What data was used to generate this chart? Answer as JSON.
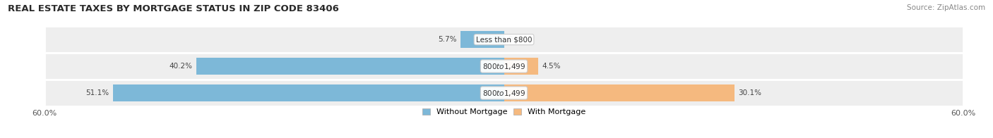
{
  "title": "REAL ESTATE TAXES BY MORTGAGE STATUS IN ZIP CODE 83406",
  "source": "Source: ZipAtlas.com",
  "rows": [
    {
      "label": "Less than $800",
      "without_mortgage": 5.7,
      "with_mortgage": 0.0
    },
    {
      "label": "$800 to $1,499",
      "without_mortgage": 40.2,
      "with_mortgage": 4.5
    },
    {
      "label": "$800 to $1,499",
      "without_mortgage": 51.1,
      "with_mortgage": 30.1
    }
  ],
  "xlim": 60.0,
  "color_without": "#7db8d8",
  "color_with": "#f5b97f",
  "bg_row_even": "#efefef",
  "bg_row_odd": "#e8e8e8",
  "bg_color": "#ffffff",
  "bar_height": 0.62,
  "legend_labels": [
    "Without Mortgage",
    "With Mortgage"
  ],
  "title_fontsize": 9.5,
  "source_fontsize": 7.5,
  "label_fontsize": 7.5,
  "pct_fontsize": 7.5,
  "tick_fontsize": 8,
  "row_bg_color": "#eeeeee"
}
